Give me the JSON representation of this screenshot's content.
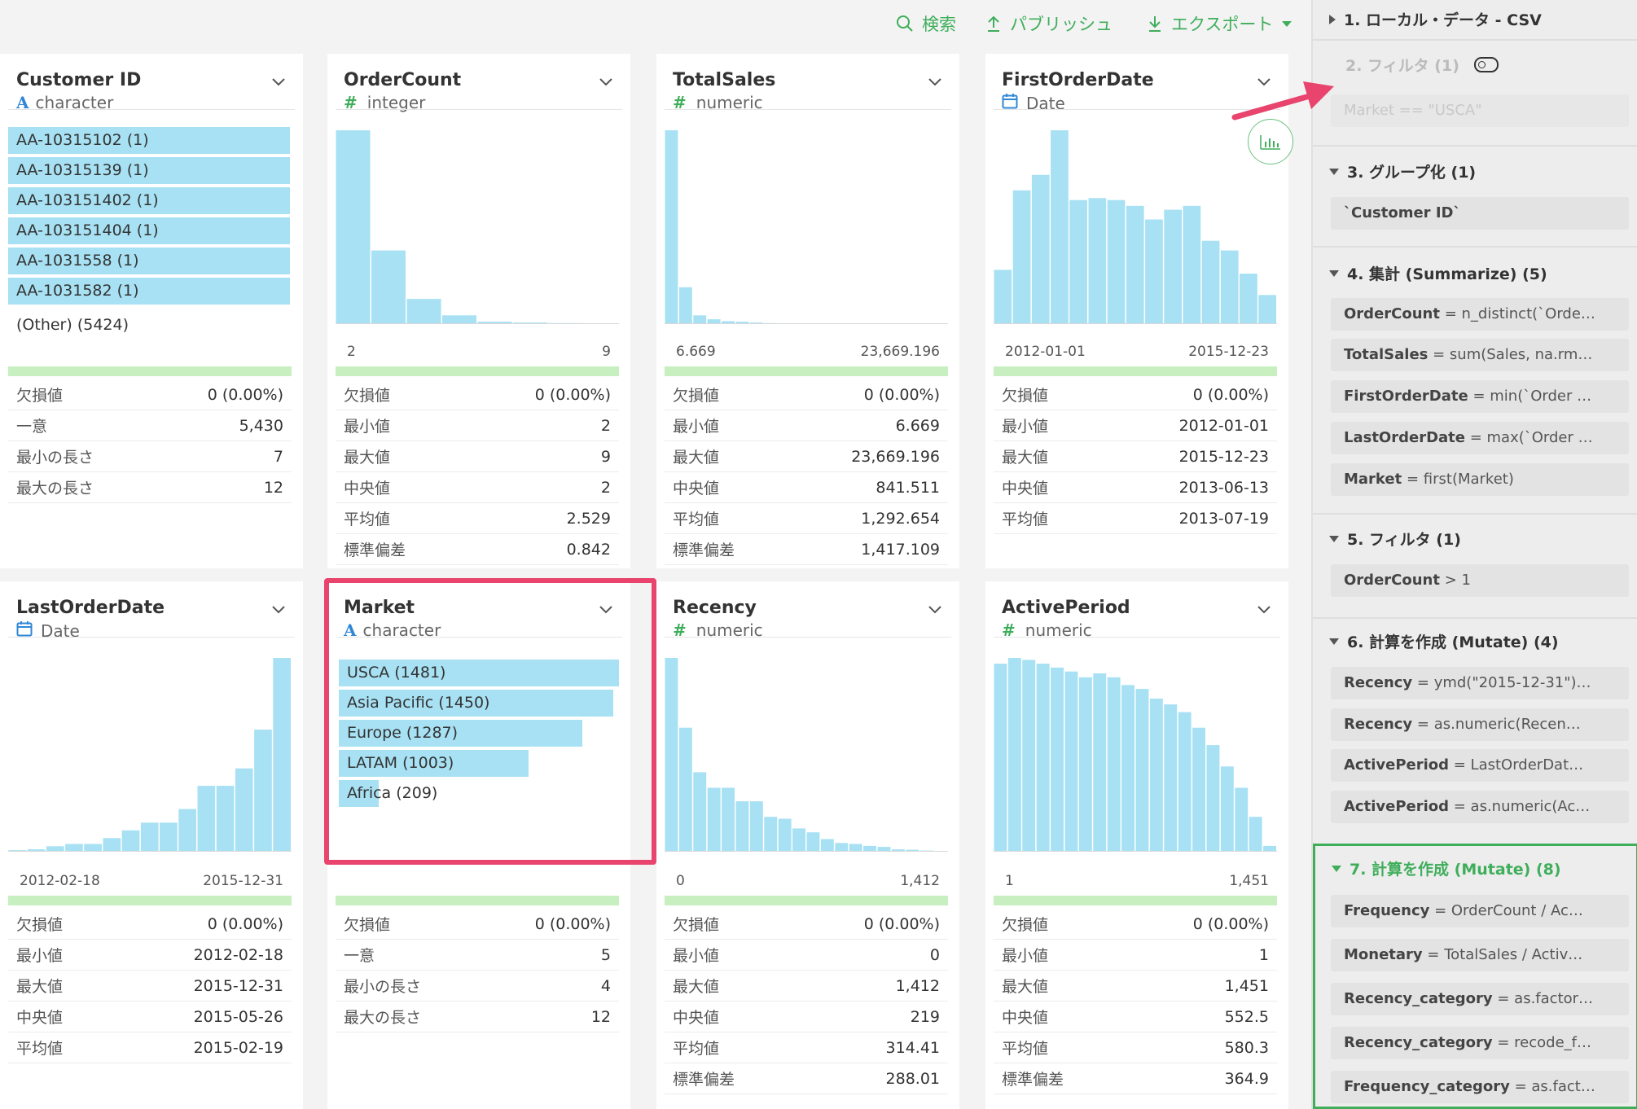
{
  "toolbar": {
    "search_label": "検索",
    "publish_label": "パブリッシュ",
    "export_label": "エクスポート"
  },
  "colors": {
    "accent_green": "#3fae5b",
    "bar_blue": "#a7e1f3",
    "highlight_pink": "#e8446d",
    "quality_green": "#c7efbf"
  },
  "columns": [
    {
      "name": "Customer ID",
      "type": "character",
      "type_icon": "text-type-icon",
      "bars": [
        {
          "label": "AA-10315102 (1)",
          "frac": 1.0
        },
        {
          "label": "AA-10315139 (1)",
          "frac": 1.0
        },
        {
          "label": "AA-103151402 (1)",
          "frac": 1.0
        },
        {
          "label": "AA-103151404 (1)",
          "frac": 1.0
        },
        {
          "label": "AA-1031558 (1)",
          "frac": 1.0
        },
        {
          "label": "AA-1031582 (1)",
          "frac": 1.0
        }
      ],
      "other": "(Other) (5424)",
      "stats": [
        {
          "k": "欠損値",
          "v": "0 (0.00%)"
        },
        {
          "k": "一意",
          "v": "5,430"
        },
        {
          "k": "最小の長さ",
          "v": "7"
        },
        {
          "k": "最大の長さ",
          "v": "12"
        }
      ]
    },
    {
      "name": "OrderCount",
      "type": "integer",
      "type_icon": "numeric-type-icon",
      "hist": [
        1.0,
        0.38,
        0.13,
        0.045,
        0.012,
        0.008,
        0.005,
        0.004
      ],
      "axis_min": "2",
      "axis_max": "9",
      "stats": [
        {
          "k": "欠損値",
          "v": "0 (0.00%)"
        },
        {
          "k": "最小値",
          "v": "2"
        },
        {
          "k": "最大値",
          "v": "9"
        },
        {
          "k": "中央値",
          "v": "2"
        },
        {
          "k": "平均値",
          "v": "2.529"
        },
        {
          "k": "標準偏差",
          "v": "0.842"
        }
      ]
    },
    {
      "name": "TotalSales",
      "type": "numeric",
      "type_icon": "numeric-type-icon",
      "hist": [
        1.0,
        0.19,
        0.045,
        0.025,
        0.015,
        0.012,
        0.008,
        0.005,
        0.004,
        0.004,
        0.003,
        0.003,
        0.002,
        0.002,
        0.002,
        0.002,
        0.002,
        0.002,
        0.002,
        0.002
      ],
      "axis_min": "6.669",
      "axis_max": "23,669.196",
      "stats": [
        {
          "k": "欠損値",
          "v": "0 (0.00%)"
        },
        {
          "k": "最小値",
          "v": "6.669"
        },
        {
          "k": "最大値",
          "v": "23,669.196"
        },
        {
          "k": "中央値",
          "v": "841.511"
        },
        {
          "k": "平均値",
          "v": "1,292.654"
        },
        {
          "k": "標準偏差",
          "v": "1,417.109"
        }
      ]
    },
    {
      "name": "FirstOrderDate",
      "type": "Date",
      "type_icon": "date-type-icon",
      "hist": [
        0.28,
        0.69,
        0.77,
        1.0,
        0.64,
        0.65,
        0.64,
        0.61,
        0.54,
        0.59,
        0.61,
        0.43,
        0.38,
        0.26,
        0.15
      ],
      "axis_min": "2012-01-01",
      "axis_max": "2015-12-23",
      "stats": [
        {
          "k": "欠損値",
          "v": "0 (0.00%)"
        },
        {
          "k": "最小値",
          "v": "2012-01-01"
        },
        {
          "k": "最大値",
          "v": "2015-12-23"
        },
        {
          "k": "中央値",
          "v": "2013-06-13"
        },
        {
          "k": "平均値",
          "v": "2013-07-19"
        }
      ]
    },
    {
      "name": "LastOrderDate",
      "type": "Date",
      "type_icon": "date-type-icon",
      "hist": [
        0.008,
        0.012,
        0.028,
        0.04,
        0.04,
        0.07,
        0.11,
        0.15,
        0.15,
        0.22,
        0.34,
        0.34,
        0.43,
        0.63,
        1.0
      ],
      "axis_min": "2012-02-18",
      "axis_max": "2015-12-31",
      "stats": [
        {
          "k": "欠損値",
          "v": "0 (0.00%)"
        },
        {
          "k": "最小値",
          "v": "2012-02-18"
        },
        {
          "k": "最大値",
          "v": "2015-12-31"
        },
        {
          "k": "中央値",
          "v": "2015-05-26"
        },
        {
          "k": "平均値",
          "v": "2015-02-19"
        }
      ]
    },
    {
      "name": "Market",
      "type": "character",
      "type_icon": "text-type-icon",
      "bars": [
        {
          "label": "USCA (1481)",
          "frac": 1.0
        },
        {
          "label": "Asia Pacific (1450)",
          "frac": 0.979
        },
        {
          "label": "Europe (1287)",
          "frac": 0.869
        },
        {
          "label": "LATAM (1003)",
          "frac": 0.677
        },
        {
          "label": "Africa (209)",
          "frac": 0.141
        }
      ],
      "stats": [
        {
          "k": "欠損値",
          "v": "0 (0.00%)"
        },
        {
          "k": "一意",
          "v": "5"
        },
        {
          "k": "最小の長さ",
          "v": "4"
        },
        {
          "k": "最大の長さ",
          "v": "12"
        }
      ]
    },
    {
      "name": "Recency",
      "type": "numeric",
      "type_icon": "numeric-type-icon",
      "hist": [
        1.0,
        0.64,
        0.41,
        0.33,
        0.33,
        0.26,
        0.26,
        0.18,
        0.17,
        0.12,
        0.1,
        0.065,
        0.045,
        0.04,
        0.03,
        0.025,
        0.012,
        0.01,
        0.006,
        0.004
      ],
      "axis_min": "0",
      "axis_max": "1,412",
      "stats": [
        {
          "k": "欠損値",
          "v": "0 (0.00%)"
        },
        {
          "k": "最小値",
          "v": "0"
        },
        {
          "k": "最大値",
          "v": "1,412"
        },
        {
          "k": "中央値",
          "v": "219"
        },
        {
          "k": "平均値",
          "v": "314.41"
        },
        {
          "k": "標準偏差",
          "v": "288.01"
        }
      ]
    },
    {
      "name": "ActivePeriod",
      "type": "numeric",
      "type_icon": "numeric-type-icon",
      "hist": [
        0.97,
        1.0,
        0.99,
        0.97,
        0.95,
        0.93,
        0.9,
        0.92,
        0.9,
        0.86,
        0.84,
        0.79,
        0.76,
        0.72,
        0.64,
        0.55,
        0.44,
        0.33,
        0.18,
        0.03
      ],
      "axis_min": "1",
      "axis_max": "1,451",
      "stats": [
        {
          "k": "欠損値",
          "v": "0 (0.00%)"
        },
        {
          "k": "最小値",
          "v": "1"
        },
        {
          "k": "最大値",
          "v": "1,451"
        },
        {
          "k": "中央値",
          "v": "552.5"
        },
        {
          "k": "平均値",
          "v": "580.3"
        },
        {
          "k": "標準偏差",
          "v": "364.9"
        }
      ]
    }
  ],
  "steps": {
    "s1": {
      "title": "1. ローカル・データ - CSV"
    },
    "s2": {
      "title": "2. フィルタ (1)",
      "items": [
        {
          "a": "Market",
          "b": " == \"USCA\""
        }
      ]
    },
    "s3": {
      "title": "3. グループ化 (1)",
      "items": [
        {
          "a": "`Customer ID`",
          "b": ""
        }
      ]
    },
    "s4": {
      "title": "4. 集計 (Summarize) (5)",
      "items": [
        {
          "a": "OrderCount",
          "b": " = n_distinct(`Orde…"
        },
        {
          "a": "TotalSales",
          "b": " = sum(Sales, na.rm…"
        },
        {
          "a": "FirstOrderDate",
          "b": " = min(`Order …"
        },
        {
          "a": "LastOrderDate",
          "b": " = max(`Order …"
        },
        {
          "a": "Market",
          "b": " = first(Market)"
        }
      ]
    },
    "s5": {
      "title": "5. フィルタ (1)",
      "items": [
        {
          "a": "OrderCount",
          "b": " > 1"
        }
      ]
    },
    "s6": {
      "title": "6. 計算を作成 (Mutate) (4)",
      "items": [
        {
          "a": "Recency",
          "b": " = ymd(\"2015-12-31\")…"
        },
        {
          "a": "Recency",
          "b": " = as.numeric(Recen…"
        },
        {
          "a": "ActivePeriod",
          "b": " = LastOrderDat…"
        },
        {
          "a": "ActivePeriod",
          "b": " = as.numeric(Ac…"
        }
      ]
    },
    "s7": {
      "title": "7. 計算を作成 (Mutate) (8)",
      "items": [
        {
          "a": "Frequency",
          "b": " = OrderCount / Ac…"
        },
        {
          "a": "Monetary",
          "b": " = TotalSales / Activ…"
        },
        {
          "a": "Recency_category",
          "b": " = as.factor…"
        },
        {
          "a": "Recency_category",
          "b": " = recode_f…"
        },
        {
          "a": "Frequency_category",
          "b": " = as.fact…"
        }
      ]
    }
  }
}
